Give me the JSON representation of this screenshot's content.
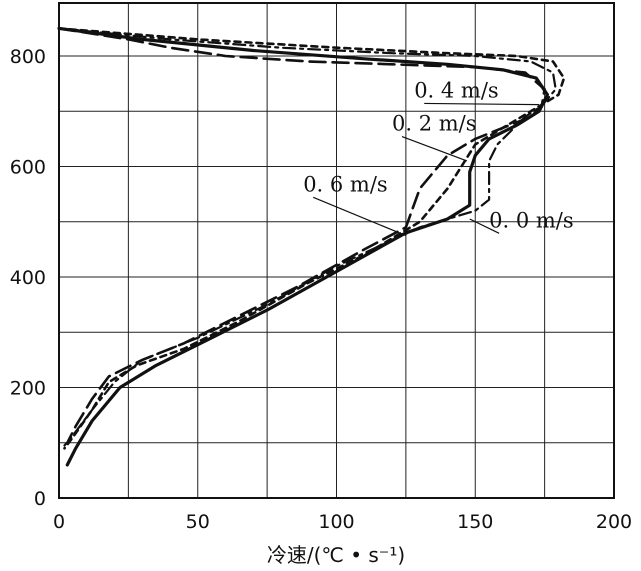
{
  "chart_data": {
    "type": "line",
    "title": "",
    "xlabel": "冷速/(℃ • s⁻¹)",
    "ylabel": "",
    "xlim": [
      0,
      200
    ],
    "ylim": [
      0,
      900
    ],
    "grid": true,
    "x_ticks": [
      0,
      50,
      100,
      150,
      200
    ],
    "y_ticks": [
      0,
      200,
      400,
      600,
      800
    ],
    "x_tick_labels": [
      "0",
      "50",
      "100",
      "150",
      "200"
    ],
    "y_tick_labels": [
      "0",
      "200",
      "400",
      "600",
      "800"
    ],
    "series": [
      {
        "name": "0.4 m/s",
        "style": "solid",
        "points": [
          [
            0,
            850
          ],
          [
            30,
            830
          ],
          [
            70,
            810
          ],
          [
            110,
            795
          ],
          [
            140,
            785
          ],
          [
            160,
            775
          ],
          [
            172,
            760
          ],
          [
            176,
            730
          ],
          [
            173,
            700
          ],
          [
            165,
            675
          ],
          [
            155,
            650
          ],
          [
            150,
            620
          ],
          [
            148,
            590
          ],
          [
            148,
            530
          ],
          [
            140,
            505
          ],
          [
            125,
            480
          ],
          [
            100,
            410
          ],
          [
            75,
            340
          ],
          [
            55,
            290
          ],
          [
            35,
            240
          ],
          [
            22,
            200
          ],
          [
            12,
            140
          ],
          [
            6,
            90
          ],
          [
            3,
            60
          ]
        ]
      },
      {
        "name": "0.2 m/s",
        "style": "long-dash",
        "points": [
          [
            0,
            850
          ],
          [
            25,
            830
          ],
          [
            40,
            815
          ],
          [
            60,
            800
          ],
          [
            90,
            790
          ],
          [
            120,
            785
          ],
          [
            150,
            780
          ],
          [
            168,
            770
          ],
          [
            175,
            740
          ],
          [
            174,
            710
          ],
          [
            170,
            690
          ],
          [
            160,
            670
          ],
          [
            150,
            650
          ],
          [
            140,
            620
          ],
          [
            130,
            560
          ],
          [
            125,
            490
          ],
          [
            110,
            450
          ],
          [
            85,
            380
          ],
          [
            65,
            330
          ],
          [
            45,
            280
          ],
          [
            30,
            250
          ],
          [
            18,
            220
          ],
          [
            12,
            180
          ],
          [
            6,
            130
          ],
          [
            3,
            100
          ]
        ]
      },
      {
        "name": "0.6 m/s",
        "style": "short-dash",
        "points": [
          [
            0,
            850
          ],
          [
            50,
            830
          ],
          [
            100,
            815
          ],
          [
            140,
            805
          ],
          [
            165,
            800
          ],
          [
            178,
            790
          ],
          [
            182,
            760
          ],
          [
            180,
            730
          ],
          [
            170,
            700
          ],
          [
            160,
            670
          ],
          [
            150,
            640
          ],
          [
            140,
            560
          ],
          [
            130,
            500
          ],
          [
            110,
            440
          ],
          [
            90,
            390
          ],
          [
            65,
            320
          ],
          [
            45,
            270
          ],
          [
            28,
            240
          ],
          [
            18,
            210
          ],
          [
            12,
            160
          ],
          [
            5,
            110
          ],
          [
            2,
            90
          ]
        ]
      },
      {
        "name": "0.0 m/s",
        "style": "dash-dot",
        "points": [
          [
            0,
            850
          ],
          [
            40,
            830
          ],
          [
            80,
            815
          ],
          [
            120,
            805
          ],
          [
            150,
            800
          ],
          [
            170,
            790
          ],
          [
            178,
            770
          ],
          [
            179,
            740
          ],
          [
            174,
            710
          ],
          [
            168,
            690
          ],
          [
            162,
            660
          ],
          [
            158,
            640
          ],
          [
            155,
            610
          ],
          [
            155,
            540
          ],
          [
            150,
            520
          ],
          [
            130,
            490
          ],
          [
            100,
            420
          ],
          [
            75,
            350
          ],
          [
            50,
            290
          ],
          [
            30,
            250
          ],
          [
            20,
            210
          ],
          [
            12,
            160
          ],
          [
            6,
            120
          ],
          [
            2,
            95
          ]
        ]
      }
    ],
    "annotations": [
      {
        "text": "0. 4 m/s",
        "at": [
          128,
          725
        ],
        "arrow_to": [
          173,
          712
        ]
      },
      {
        "text": "0. 2 m/s",
        "at": [
          120,
          665
        ],
        "arrow_to": [
          147,
          610
        ]
      },
      {
        "text": "0. 6 m/s",
        "at": [
          88,
          555
        ],
        "arrow_to": [
          125,
          475
        ]
      },
      {
        "text": "0. 0 m/s",
        "at": [
          155,
          490
        ],
        "arrow_to": [
          148,
          505
        ]
      }
    ]
  }
}
